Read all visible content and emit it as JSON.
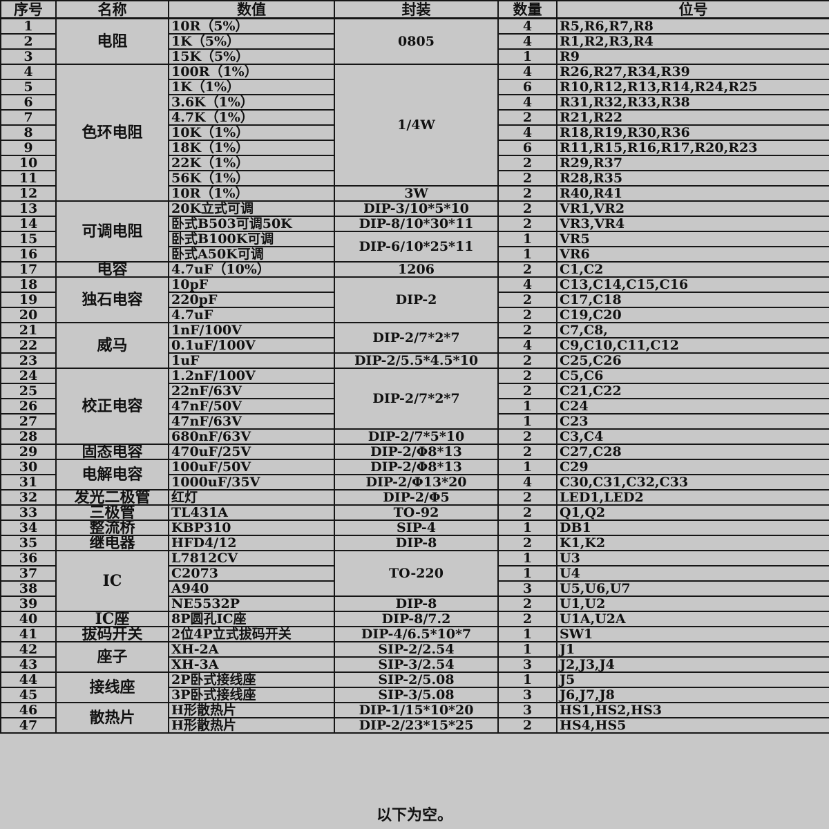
{
  "headers": [
    "序号",
    "名称",
    "数值",
    "封装",
    "数量",
    "位号"
  ],
  "rows": [
    {
      "no": "1",
      "value": "10R（5%）",
      "qty": "4",
      "ref": "R5,R6,R7,R8"
    },
    {
      "no": "2",
      "value": "1K（5%）",
      "qty": "4",
      "ref": "R1,R2,R3,R4"
    },
    {
      "no": "3",
      "value": "15K（5%）",
      "qty": "1",
      "ref": "R9"
    },
    {
      "no": "4",
      "value": "100R（1%）",
      "qty": "4",
      "ref": "R26,R27,R34,R39"
    },
    {
      "no": "5",
      "value": "1K（1%）",
      "qty": "6",
      "ref": "R10,R12,R13,R14,R24,R25"
    },
    {
      "no": "6",
      "value": "3.6K（1%）",
      "qty": "4",
      "ref": "R31,R32,R33,R38"
    },
    {
      "no": "7",
      "value": "4.7K（1%）",
      "qty": "2",
      "ref": "R21,R22"
    },
    {
      "no": "8",
      "value": "10K（1%）",
      "qty": "4",
      "ref": "R18,R19,R30,R36"
    },
    {
      "no": "9",
      "value": "18K（1%）",
      "qty": "6",
      "ref": "R11,R15,R16,R17,R20,R23"
    },
    {
      "no": "10",
      "value": "22K（1%）",
      "qty": "2",
      "ref": "R29,R37"
    },
    {
      "no": "11",
      "value": "56K（1%）",
      "qty": "2",
      "ref": "R28,R35"
    },
    {
      "no": "12",
      "value": "10R（1%）",
      "qty": "2",
      "ref": "R40,R41"
    },
    {
      "no": "13",
      "value": "20K立式可调",
      "qty": "2",
      "ref": "VR1,VR2"
    },
    {
      "no": "14",
      "value": "卧式B503可调50K",
      "qty": "2",
      "ref": "VR3,VR4"
    },
    {
      "no": "15",
      "value": "卧式B100K可调",
      "qty": "1",
      "ref": "VR5"
    },
    {
      "no": "16",
      "value": "卧式A50K可调",
      "qty": "1",
      "ref": "VR6"
    },
    {
      "no": "17",
      "value": "4.7uF（10%）",
      "qty": "2",
      "ref": "C1,C2"
    },
    {
      "no": "18",
      "value": "10pF",
      "qty": "4",
      "ref": "C13,C14,C15,C16"
    },
    {
      "no": "19",
      "value": "220pF",
      "qty": "2",
      "ref": "C17,C18"
    },
    {
      "no": "20",
      "value": "4.7uF",
      "qty": "2",
      "ref": "C19,C20"
    },
    {
      "no": "21",
      "value": "1nF/100V",
      "qty": "2",
      "ref": "C7,C8,"
    },
    {
      "no": "22",
      "value": "0.1uF/100V",
      "qty": "4",
      "ref": "C9,C10,C11,C12"
    },
    {
      "no": "23",
      "value": "1uF",
      "qty": "2",
      "ref": "C25,C26"
    },
    {
      "no": "24",
      "value": "1.2nF/100V",
      "qty": "2",
      "ref": "C5,C6"
    },
    {
      "no": "25",
      "value": "22nF/63V",
      "qty": "2",
      "ref": "C21,C22"
    },
    {
      "no": "26",
      "value": "47nF/50V",
      "qty": "1",
      "ref": "C24"
    },
    {
      "no": "27",
      "value": "47nF/63V",
      "qty": "1",
      "ref": "C23"
    },
    {
      "no": "28",
      "value": "680nF/63V",
      "qty": "2",
      "ref": "C3,C4"
    },
    {
      "no": "29",
      "value": "470uF/25V",
      "qty": "2",
      "ref": "C27,C28"
    },
    {
      "no": "30",
      "value": "100uF/50V",
      "qty": "1",
      "ref": "C29"
    },
    {
      "no": "31",
      "value": "1000uF/35V",
      "qty": "4",
      "ref": "C30,C31,C32,C33"
    },
    {
      "no": "32",
      "value": "红灯",
      "qty": "2",
      "ref": "LED1,LED2"
    },
    {
      "no": "33",
      "value": "TL431A",
      "qty": "2",
      "ref": "Q1,Q2"
    },
    {
      "no": "34",
      "value": "KBP310",
      "qty": "1",
      "ref": "DB1"
    },
    {
      "no": "35",
      "value": "HFD4/12",
      "qty": "2",
      "ref": "K1,K2"
    },
    {
      "no": "36",
      "value": "L7812CV",
      "qty": "1",
      "ref": "U3"
    },
    {
      "no": "37",
      "value": "C2073",
      "qty": "1",
      "ref": "U4"
    },
    {
      "no": "38",
      "value": "A940",
      "qty": "3",
      "ref": "U5,U6,U7"
    },
    {
      "no": "39",
      "value": "NE5532P",
      "qty": "2",
      "ref": "U1,U2"
    },
    {
      "no": "40",
      "value": "8P圆孔IC座",
      "qty": "2",
      "ref": "U1A,U2A"
    },
    {
      "no": "41",
      "value": "2位4P立式拔码开关",
      "qty": "1",
      "ref": "SW1"
    },
    {
      "no": "42",
      "value": "XH-2A",
      "qty": "1",
      "ref": "J1"
    },
    {
      "no": "43",
      "value": "XH-3A",
      "qty": "3",
      "ref": "J2,J3,J4"
    },
    {
      "no": "44",
      "value": "2P卧式接线座",
      "qty": "1",
      "ref": "J5"
    },
    {
      "no": "45",
      "value": "3P卧式接线座",
      "qty": "3",
      "ref": "J6,J7,J8"
    },
    {
      "no": "46",
      "value": "H形散热片",
      "qty": "3",
      "ref": "HS1,HS2,HS3"
    },
    {
      "no": "47",
      "value": "H形散热片",
      "qty": "2",
      "ref": "HS4,HS5"
    }
  ],
  "name_groups": [
    {
      "label": "电阻",
      "span": 3
    },
    {
      "label": "色环电阻",
      "span": 9
    },
    {
      "label": "可调电阻",
      "span": 4
    },
    {
      "label": "电容",
      "span": 1
    },
    {
      "label": "独石电容",
      "span": 3
    },
    {
      "label": "威马",
      "span": 3
    },
    {
      "label": "校正电容",
      "span": 5
    },
    {
      "label": "固态电容",
      "span": 1
    },
    {
      "label": "电解电容",
      "span": 2
    },
    {
      "label": "发光二极管",
      "span": 1
    },
    {
      "label": "三极管",
      "span": 1
    },
    {
      "label": "整流桥",
      "span": 1
    },
    {
      "label": "继电器",
      "span": 1
    },
    {
      "label": "IC",
      "span": 4
    },
    {
      "label": "IC座",
      "span": 1
    },
    {
      "label": "拔码开关",
      "span": 1
    },
    {
      "label": "座子",
      "span": 2
    },
    {
      "label": "接线座",
      "span": 2
    },
    {
      "label": "散热片",
      "span": 2
    }
  ],
  "package_groups": [
    {
      "label": "0805",
      "span": 3
    },
    {
      "label": "1/4W",
      "span": 8
    },
    {
      "label": "3W",
      "span": 1
    },
    {
      "label": "DIP-3/10*5*10",
      "span": 1
    },
    {
      "label": "DIP-8/10*30*11",
      "span": 1
    },
    {
      "label": "DIP-6/10*25*11",
      "span": 2
    },
    {
      "label": "1206",
      "span": 1
    },
    {
      "label": "DIP-2",
      "span": 3
    },
    {
      "label": "DIP-2/7*2*7",
      "span": 2
    },
    {
      "label": "DIP-2/5.5*4.5*10",
      "span": 1
    },
    {
      "label": "DIP-2/7*2*7",
      "span": 4
    },
    {
      "label": "DIP-2/7*5*10",
      "span": 1
    },
    {
      "label": "DIP-2/Φ8*13",
      "span": 1
    },
    {
      "label": "DIP-2/Φ8*13",
      "span": 1
    },
    {
      "label": "DIP-2/Φ13*20",
      "span": 1
    },
    {
      "label": "DIP-2/Φ5",
      "span": 1
    },
    {
      "label": "TO-92",
      "span": 1
    },
    {
      "label": "SIP-4",
      "span": 1
    },
    {
      "label": "DIP-8",
      "span": 1
    },
    {
      "label": "TO-220",
      "span": 3
    },
    {
      "label": "DIP-8",
      "span": 1
    },
    {
      "label": "DIP-8/7.2",
      "span": 1
    },
    {
      "label": "DIP-4/6.5*10*7",
      "span": 1
    },
    {
      "label": "SIP-2/2.54",
      "span": 1
    },
    {
      "label": "SIP-3/2.54",
      "span": 1
    },
    {
      "label": "SIP-2/5.08",
      "span": 1
    },
    {
      "label": "SIP-3/5.08",
      "span": 1
    },
    {
      "label": "DIP-1/15*10*20",
      "span": 1
    },
    {
      "label": "DIP-2/23*15*25",
      "span": 1
    }
  ],
  "footer": "以下为空。"
}
